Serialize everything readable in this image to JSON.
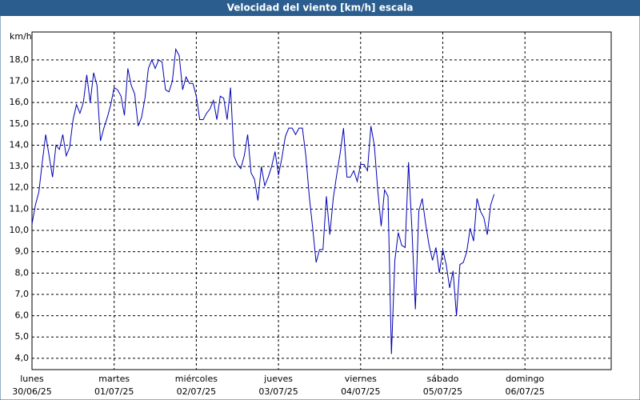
{
  "chart_data": {
    "type": "line",
    "title": "Velocidad del viento [km/h] escala",
    "y_unit": "km/h",
    "color": "#0000b4",
    "grid": true,
    "x": [
      0,
      1,
      2,
      3,
      4,
      5,
      6,
      7,
      8,
      9,
      10,
      11,
      12,
      13,
      14,
      15,
      16,
      17,
      18,
      19,
      20,
      21,
      22,
      23,
      24,
      25,
      26,
      27,
      28,
      29,
      30,
      31,
      32,
      33,
      34,
      35,
      36,
      37,
      38,
      39,
      40,
      41,
      42,
      43,
      44,
      45,
      46,
      47,
      48,
      49,
      50,
      51,
      52,
      53,
      54,
      55,
      56,
      57,
      58,
      59,
      60,
      61,
      62,
      63,
      64,
      65,
      66,
      67,
      68,
      69,
      70,
      71,
      72,
      73,
      74,
      75,
      76,
      77,
      78,
      79,
      80,
      81,
      82,
      83,
      84,
      85,
      86,
      87,
      88,
      89,
      90,
      91,
      92,
      93,
      94,
      95,
      96,
      97,
      98,
      99,
      100,
      101,
      102,
      103,
      104,
      105,
      106,
      107,
      108,
      109,
      110,
      111,
      112,
      113,
      114,
      115,
      116,
      117,
      118,
      119,
      120,
      121,
      122,
      123,
      124,
      125,
      126,
      127,
      128,
      129,
      130,
      131,
      132,
      133,
      134,
      135
    ],
    "values": [
      10.3,
      11.2,
      11.8,
      13.2,
      14.5,
      13.5,
      12.5,
      14.0,
      13.8,
      14.5,
      13.5,
      13.9,
      15.2,
      15.9,
      15.5,
      16.0,
      17.3,
      16.0,
      17.4,
      16.8,
      14.2,
      14.8,
      15.3,
      15.9,
      16.7,
      16.6,
      16.3,
      15.4,
      17.6,
      16.8,
      16.4,
      14.9,
      15.3,
      16.2,
      17.6,
      18.0,
      17.6,
      18.0,
      17.9,
      16.6,
      16.5,
      17.0,
      18.5,
      18.2,
      16.6,
      17.2,
      16.9,
      16.9,
      16.3,
      15.2,
      15.2,
      15.5,
      15.7,
      16.1,
      15.2,
      16.3,
      16.2,
      15.2,
      16.7,
      13.5,
      13.1,
      12.9,
      13.5,
      14.5,
      12.7,
      12.4,
      11.4,
      13.0,
      12.1,
      12.5,
      13.0,
      13.7,
      12.6,
      13.4,
      14.4,
      14.8,
      14.8,
      14.5,
      14.8,
      14.8,
      13.5,
      11.6,
      10.1,
      8.5,
      9.1,
      9.1,
      11.6,
      9.8,
      11.5,
      12.6,
      13.6,
      14.8,
      12.5,
      12.5,
      12.8,
      12.3,
      13.1,
      13.1,
      12.8,
      14.9,
      14.0,
      11.9,
      10.2,
      11.9,
      11.6,
      4.2,
      8.6,
      9.9,
      9.3,
      9.2,
      13.2,
      10.0,
      6.3,
      10.9,
      11.5,
      10.3,
      9.3,
      8.6,
      9.2,
      8.0,
      9.1,
      8.4,
      7.3,
      8.1,
      6.0,
      8.4,
      8.5,
      9.0,
      10.1,
      9.5,
      11.5,
      10.9,
      10.6,
      9.8,
      11.2,
      11.7
    ],
    "xlim": [
      0,
      169.2
    ],
    "xticks": [
      {
        "value": 0,
        "label": "lunes"
      },
      {
        "value": 24,
        "label": "martes"
      },
      {
        "value": 48,
        "label": "miércoles"
      },
      {
        "value": 72,
        "label": "jueves"
      },
      {
        "value": 96,
        "label": "viernes"
      },
      {
        "value": 120,
        "label": "sábado"
      },
      {
        "value": 144,
        "label": "domingo"
      }
    ],
    "xtick_dates": [
      "30/06/25",
      "01/07/25",
      "02/07/25",
      "03/07/25",
      "04/07/25",
      "05/07/25",
      "06/07/25"
    ],
    "ylim": [
      3.47,
      19.31
    ],
    "yticks": [
      {
        "value": 4,
        "label": "4,0"
      },
      {
        "value": 5,
        "label": "5,0"
      },
      {
        "value": 6,
        "label": "6,0"
      },
      {
        "value": 7,
        "label": "7,0"
      },
      {
        "value": 8,
        "label": "8,0"
      },
      {
        "value": 9,
        "label": "9,0"
      },
      {
        "value": 10,
        "label": "10,0"
      },
      {
        "value": 11,
        "label": "11,0"
      },
      {
        "value": 12,
        "label": "12,0"
      },
      {
        "value": 13,
        "label": "13,0"
      },
      {
        "value": 14,
        "label": "14,0"
      },
      {
        "value": 15,
        "label": "15,0"
      },
      {
        "value": 16,
        "label": "16,0"
      },
      {
        "value": 17,
        "label": "17,0"
      },
      {
        "value": 18,
        "label": "18,0"
      }
    ]
  }
}
